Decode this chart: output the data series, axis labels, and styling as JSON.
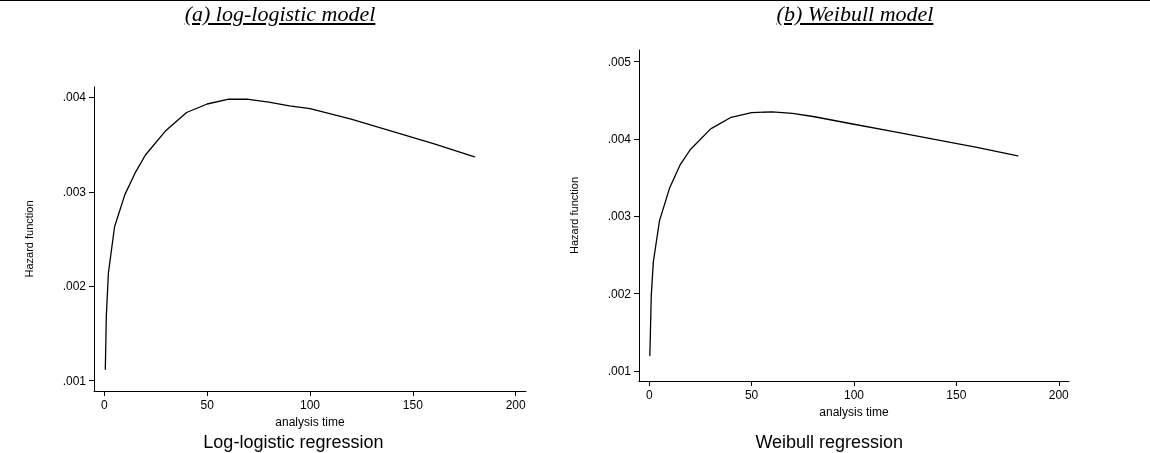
{
  "chart_data": [
    {
      "type": "line",
      "title": "(a) log-logistic model",
      "subtitle": "Log-logistic regression",
      "xlabel": "analysis time",
      "ylabel": "Hazard function",
      "x": [
        0.5,
        1,
        2,
        5,
        10,
        15,
        20,
        30,
        40,
        50,
        60,
        70,
        80,
        90,
        100,
        120,
        140,
        160,
        180
      ],
      "series": [
        {
          "color": "#000000",
          "values": [
            0.00112,
            0.00169,
            0.00214,
            0.00263,
            0.00297,
            0.0032,
            0.00339,
            0.00365,
            0.00384,
            0.00393,
            0.00398,
            0.00398,
            0.00395,
            0.00391,
            0.00388,
            0.00377,
            0.00364,
            0.00351,
            0.00337
          ]
        }
      ],
      "xlim": [
        -5,
        205
      ],
      "xticks": [
        0,
        50,
        100,
        150,
        200
      ],
      "ylim": [
        0.00089,
        0.00411
      ],
      "yticks": [
        {
          "value": 0.001,
          "label": ".001"
        },
        {
          "value": 0.002,
          "label": ".002"
        },
        {
          "value": 0.003,
          "label": ".003"
        },
        {
          "value": 0.004,
          "label": ".004"
        }
      ],
      "grid": false,
      "marker": "none",
      "line_style": "solid"
    },
    {
      "type": "line",
      "title": "(b) Weibull model",
      "subtitle": "Weibull regression",
      "xlabel": "analysis time",
      "ylabel": "Hazard function",
      "x": [
        0.3,
        1,
        2,
        5,
        10,
        15,
        20,
        30,
        40,
        50,
        60,
        70,
        80,
        100,
        120,
        140,
        160,
        180
      ],
      "series": [
        {
          "color": "#000000",
          "values": [
            0.0012,
            0.00198,
            0.00241,
            0.00294,
            0.00337,
            0.00366,
            0.00386,
            0.00413,
            0.00428,
            0.00434,
            0.00435,
            0.00433,
            0.00429,
            0.00419,
            0.00409,
            0.00399,
            0.00389,
            0.00378
          ]
        }
      ],
      "xlim": [
        -5,
        205
      ],
      "xticks": [
        0,
        50,
        100,
        150,
        200
      ],
      "ylim": [
        0.00087,
        0.00515
      ],
      "yticks": [
        {
          "value": 0.001,
          "label": ".001"
        },
        {
          "value": 0.002,
          "label": ".002"
        },
        {
          "value": 0.003,
          "label": ".003"
        },
        {
          "value": 0.004,
          "label": ".004"
        },
        {
          "value": 0.005,
          "label": ".005"
        }
      ],
      "grid": false,
      "marker": "none",
      "line_style": "solid"
    }
  ]
}
